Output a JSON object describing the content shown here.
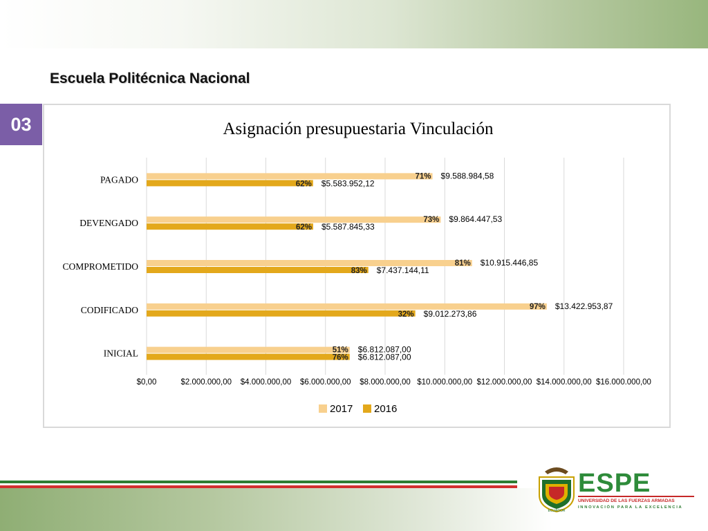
{
  "header": {
    "institution": "Escuela Politécnica Nacional"
  },
  "slide_number": "03",
  "chart_data": {
    "type": "bar",
    "orientation": "horizontal",
    "title": "Asignación presupuestaria Vinculación",
    "xlabel": "",
    "ylabel": "",
    "xlim": [
      0,
      16000000
    ],
    "grid": true,
    "legend_position": "bottom",
    "categories": [
      "PAGADO",
      "DEVENGADO",
      "COMPROMETIDO",
      "CODIFICADO",
      "INICIAL"
    ],
    "x_tick_labels": [
      "$0,00",
      "$2.000.000,00",
      "$4.000.000,00",
      "$6.000.000,00",
      "$8.000.000,00",
      "$10.000.000,00",
      "$12.000.000,00",
      "$14.000.000,00",
      "$16.000.000,00"
    ],
    "series": [
      {
        "name": "2017",
        "color": "#f8d08e",
        "values": [
          9588984.58,
          9864447.53,
          10915446.85,
          13422953.87,
          6812087.0
        ],
        "value_labels": [
          "$9.588.984,58",
          "$9.864.447,53",
          "$10.915.446,85",
          "$13.422.953,87",
          "$6.812.087,00"
        ],
        "pct_labels": [
          "71%",
          "73%",
          "81%",
          "97%",
          "51%"
        ]
      },
      {
        "name": "2016",
        "color": "#e3a81b",
        "values": [
          5583952.12,
          5587845.33,
          7437144.11,
          9012273.86,
          6812087.0
        ],
        "value_labels": [
          "$5.583.952,12",
          "$5.587.845,33",
          "$7.437.144,11",
          "$9.012.273,86",
          "$6.812.087,00"
        ],
        "pct_labels": [
          "62%",
          "62%",
          "83%",
          "32%",
          "76%"
        ]
      }
    ]
  },
  "logo": {
    "name": "ESPE",
    "subtitle": "UNIVERSIDAD DE LAS FUERZAS ARMADAS",
    "tagline": "INNOVACIÓN PARA LA EXCELENCIA",
    "crest_text": "ECUADOR",
    "colors": {
      "green": "#2e7d32",
      "red": "#c62828",
      "gold": "#e0b000"
    }
  }
}
